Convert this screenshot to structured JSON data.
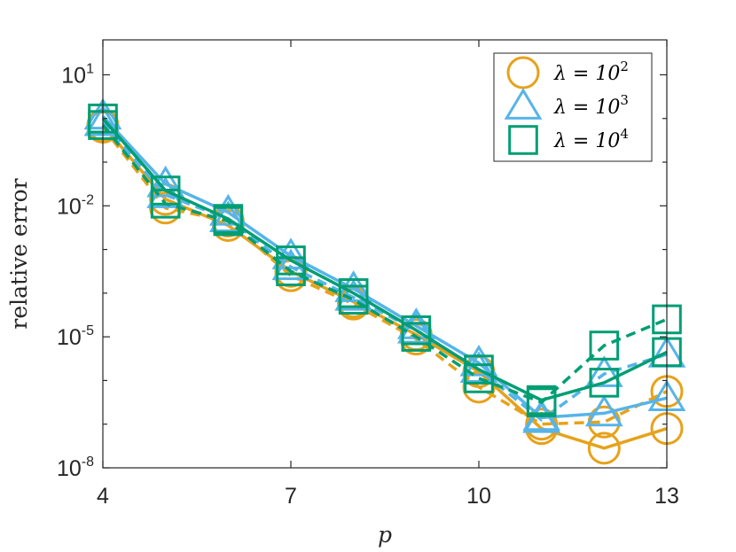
{
  "chart_data": {
    "type": "line",
    "xlabel": "p",
    "ylabel": "relative error",
    "xlim": [
      4,
      13
    ],
    "ylim_log10": [
      -8,
      1.8
    ],
    "yscale": "log",
    "x_ticks": [
      {
        "value": 4,
        "label": "4"
      },
      {
        "value": 7,
        "label": "7"
      },
      {
        "value": 10,
        "label": "10"
      },
      {
        "value": 13,
        "label": "13"
      }
    ],
    "y_ticks": [
      {
        "exp": -8,
        "base": "10",
        "sup": "-8"
      },
      {
        "exp": -5,
        "base": "10",
        "sup": "-5"
      },
      {
        "exp": -2,
        "base": "10",
        "sup": "-2"
      },
      {
        "exp": 1,
        "base": "10",
        "sup": "1"
      }
    ],
    "legend_position": "top-right",
    "x": [
      4,
      5,
      6,
      7,
      8,
      9,
      10,
      11,
      12,
      13
    ],
    "series": [
      {
        "label_main": "λ = 10",
        "label_sup": "2",
        "color": "#E6A21A",
        "marker": "circle",
        "solid_log10": [
          -0.15,
          -1.85,
          -2.45,
          -3.5,
          -4.2,
          -4.95,
          -5.8,
          -7.1,
          -7.55,
          -7.1
        ],
        "dashed_log10": [
          -0.2,
          -2.05,
          -2.35,
          -3.6,
          -4.25,
          -5.05,
          -6.15,
          -7.0,
          -6.95,
          -6.25
        ]
      },
      {
        "label_main": "λ = 10",
        "label_sup": "3",
        "color": "#56B4E9",
        "marker": "triangle",
        "solid_log10": [
          0.05,
          -1.5,
          -2.15,
          -3.15,
          -3.9,
          -4.75,
          -5.6,
          -6.85,
          -6.75,
          -6.4
        ],
        "dashed_log10": [
          -0.1,
          -1.75,
          -2.3,
          -3.4,
          -4.1,
          -4.85,
          -5.75,
          -6.9,
          -5.85,
          -5.4
        ]
      },
      {
        "label_main": "λ = 10",
        "label_sup": "4",
        "color": "#009E73",
        "marker": "square",
        "solid_log10": [
          0.0,
          -1.65,
          -2.3,
          -3.25,
          -4.0,
          -4.85,
          -5.75,
          -6.45,
          -6.05,
          -5.35
        ],
        "dashed_log10": [
          -0.15,
          -1.95,
          -2.35,
          -3.5,
          -4.15,
          -5.0,
          -5.95,
          -6.5,
          -5.2,
          -4.6
        ]
      }
    ]
  }
}
